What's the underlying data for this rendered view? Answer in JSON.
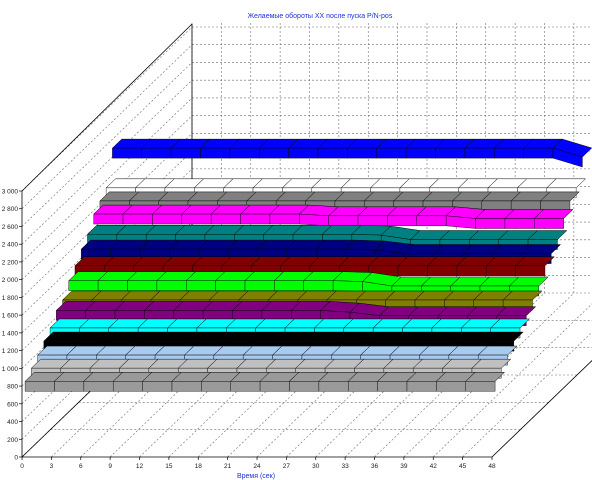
{
  "chart_data": {
    "type": "area",
    "title": "Желаемые обороты XX после пуска P/N-pos",
    "xlabel": "Время (сек)",
    "ylabel": "",
    "x_ticks": [
      "0",
      "3",
      "6",
      "9",
      "12",
      "15",
      "18",
      "21",
      "24",
      "27",
      "30",
      "33",
      "36",
      "39",
      "42",
      "45",
      "48"
    ],
    "y_ticks": [
      "0",
      "200",
      "400",
      "600",
      "800",
      "1 000",
      "1 200",
      "1 400",
      "1 600",
      "1 800",
      "2 000",
      "2 200",
      "2 400",
      "2 600",
      "2 800",
      "3 000"
    ],
    "xlim": [
      0,
      48
    ],
    "ylim": [
      0,
      3000
    ],
    "grid": true,
    "style": "3d-ribbons",
    "series": [
      {
        "color": "#9a9a9a",
        "x": [
          0,
          3,
          6,
          9,
          12,
          15,
          18,
          21,
          24,
          27,
          30,
          33,
          36,
          39,
          42,
          45,
          48
        ],
        "values": [
          820,
          820,
          820,
          820,
          820,
          820,
          820,
          820,
          820,
          820,
          820,
          820,
          820,
          820,
          820,
          820,
          820
        ]
      },
      {
        "color": "#c0c0c0",
        "x": [
          0,
          3,
          6,
          9,
          12,
          15,
          18,
          21,
          24,
          27,
          30,
          33,
          36,
          39,
          42,
          45,
          48
        ],
        "values": [
          900,
          900,
          900,
          900,
          900,
          900,
          900,
          900,
          900,
          900,
          900,
          900,
          900,
          900,
          900,
          900,
          900
        ]
      },
      {
        "color": "#a6caf0",
        "x": [
          0,
          3,
          6,
          9,
          12,
          15,
          18,
          21,
          24,
          27,
          30,
          33,
          36,
          39,
          42,
          45,
          48
        ],
        "values": [
          980,
          980,
          980,
          980,
          980,
          980,
          980,
          980,
          980,
          980,
          980,
          980,
          980,
          980,
          980,
          980,
          980
        ]
      },
      {
        "color": "#000000",
        "x": [
          0,
          3,
          6,
          9,
          12,
          15,
          18,
          21,
          24,
          27,
          30,
          33,
          36,
          39,
          42,
          45,
          48
        ],
        "values": [
          1070,
          1070,
          1070,
          1070,
          1070,
          1070,
          1070,
          1070,
          1070,
          1070,
          1070,
          1070,
          1070,
          1070,
          1070,
          1070,
          1070
        ]
      },
      {
        "color": "#00ffff",
        "x": [
          0,
          3,
          6,
          9,
          12,
          15,
          18,
          21,
          24,
          27,
          30,
          33,
          36,
          39,
          42,
          45,
          48
        ],
        "values": [
          1150,
          1150,
          1150,
          1150,
          1150,
          1150,
          1150,
          1150,
          1150,
          1150,
          1150,
          1150,
          1150,
          1150,
          1150,
          1150,
          1150
        ]
      },
      {
        "color": "#800080",
        "x": [
          0,
          3,
          6,
          9,
          12,
          15,
          18,
          21,
          24,
          27,
          30,
          33,
          36,
          39,
          42,
          45,
          48
        ],
        "values": [
          1280,
          1280,
          1280,
          1280,
          1280,
          1280,
          1280,
          1280,
          1280,
          1280,
          1260,
          1220,
          1220,
          1220,
          1220,
          1220,
          1220
        ]
      },
      {
        "color": "#808000",
        "x": [
          0,
          3,
          6,
          9,
          12,
          15,
          18,
          21,
          24,
          27,
          30,
          33,
          36,
          39,
          42,
          45,
          48
        ],
        "values": [
          1330,
          1330,
          1330,
          1330,
          1330,
          1330,
          1330,
          1330,
          1330,
          1330,
          1330,
          1330,
          1330,
          1330,
          1330,
          1330,
          1330
        ]
      },
      {
        "color": "#00ff00",
        "x": [
          0,
          3,
          6,
          9,
          12,
          15,
          18,
          21,
          24,
          27,
          30,
          33,
          36,
          39,
          42,
          45,
          48
        ],
        "values": [
          1480,
          1480,
          1480,
          1480,
          1480,
          1480,
          1480,
          1480,
          1480,
          1480,
          1470,
          1420,
          1420,
          1420,
          1420,
          1420,
          1420
        ]
      },
      {
        "color": "#800000",
        "x": [
          0,
          3,
          6,
          9,
          12,
          15,
          18,
          21,
          24,
          27,
          30,
          33,
          36,
          39,
          42,
          45,
          48
        ],
        "values": [
          1580,
          1580,
          1580,
          1580,
          1580,
          1580,
          1580,
          1580,
          1580,
          1580,
          1580,
          1580,
          1580,
          1580,
          1580,
          1580,
          1580
        ]
      },
      {
        "color": "#000080",
        "x": [
          0,
          3,
          6,
          9,
          12,
          15,
          18,
          21,
          24,
          27,
          30,
          33,
          36,
          39,
          42,
          45,
          48
        ],
        "values": [
          1700,
          1700,
          1700,
          1700,
          1700,
          1700,
          1700,
          1700,
          1700,
          1700,
          1690,
          1650,
          1650,
          1650,
          1650,
          1650,
          1650
        ]
      },
      {
        "color": "#008080",
        "x": [
          0,
          3,
          6,
          9,
          12,
          15,
          18,
          21,
          24,
          27,
          30,
          33,
          36,
          39,
          42,
          45,
          48
        ],
        "values": [
          1800,
          1800,
          1800,
          1800,
          1800,
          1800,
          1800,
          1800,
          1800,
          1800,
          1790,
          1740,
          1740,
          1740,
          1740,
          1740,
          1740
        ]
      },
      {
        "color": "#ff00ff",
        "x": [
          0,
          3,
          6,
          9,
          12,
          15,
          18,
          21,
          24,
          27,
          30,
          33,
          36,
          39,
          42,
          45,
          48
        ],
        "values": [
          1960,
          1960,
          1960,
          1960,
          1960,
          1960,
          1960,
          1960,
          1940,
          1940,
          1940,
          1940,
          1940,
          1910,
          1910,
          1910,
          1910
        ]
      },
      {
        "color": "#808080",
        "x": [
          0,
          3,
          6,
          9,
          12,
          15,
          18,
          21,
          24,
          27,
          30,
          33,
          36,
          39,
          42,
          45,
          48
        ],
        "values": [
          2040,
          2040,
          2040,
          2040,
          2040,
          2040,
          2040,
          2040,
          2040,
          2040,
          2040,
          2040,
          2040,
          2040,
          2040,
          2040,
          2040
        ]
      },
      {
        "color": "#ffffff",
        "x": [
          0,
          3,
          6,
          9,
          12,
          15,
          18,
          21,
          24,
          27,
          30,
          33,
          36,
          39,
          42,
          45,
          48
        ],
        "values": [
          2120,
          2120,
          2120,
          2120,
          2120,
          2120,
          2120,
          2120,
          2120,
          2120,
          2120,
          2120,
          2120,
          2120,
          2120,
          2120,
          2120
        ]
      },
      {
        "color": "#0000ff",
        "x": [
          0,
          3,
          6,
          9,
          12,
          15,
          18,
          21,
          24,
          27,
          30,
          33,
          36,
          39,
          42,
          45,
          48
        ],
        "values": [
          2500,
          2500,
          2500,
          2500,
          2500,
          2500,
          2500,
          2500,
          2500,
          2500,
          2500,
          2500,
          2500,
          2500,
          2500,
          2500,
          2400
        ]
      }
    ]
  }
}
